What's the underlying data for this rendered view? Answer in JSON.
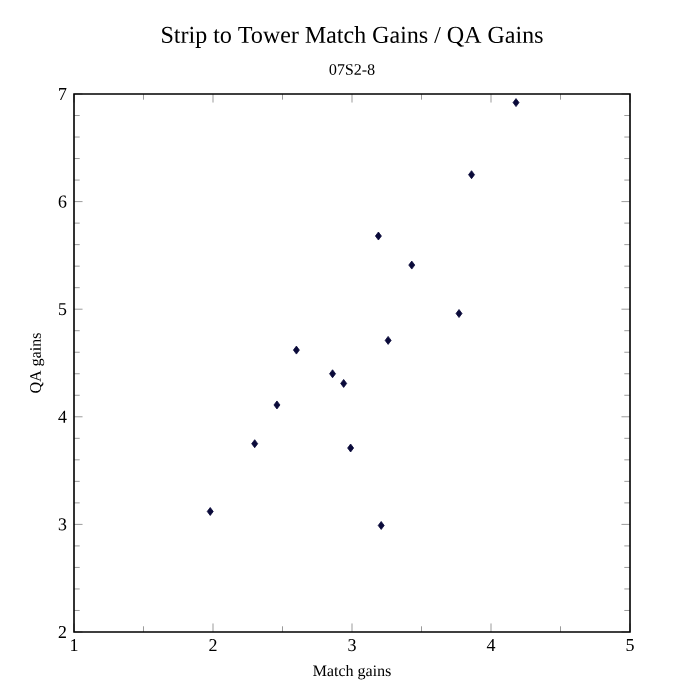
{
  "chart_data": {
    "type": "scatter",
    "title": "Strip to Tower Match Gains / QA Gains",
    "subtitle": "07S2-8",
    "xlabel": "Match gains",
    "ylabel": "QA gains",
    "xlim": [
      1,
      5
    ],
    "xticks": [
      1,
      2,
      3,
      4,
      5
    ],
    "ylim": [
      2,
      7
    ],
    "yticks": [
      2,
      3,
      4,
      5,
      6,
      7
    ],
    "grid": false,
    "marker": "diamond",
    "series": [
      {
        "color": "#0a0a3a",
        "x": [
          4.18,
          3.86,
          3.19,
          3.43,
          3.77,
          3.26,
          2.6,
          2.86,
          2.94,
          2.46,
          2.3,
          2.99,
          1.98,
          3.21
        ],
        "values": [
          6.92,
          6.25,
          5.68,
          5.41,
          4.96,
          4.71,
          4.62,
          4.4,
          4.31,
          4.11,
          3.75,
          3.71,
          3.12,
          2.99
        ]
      }
    ]
  }
}
